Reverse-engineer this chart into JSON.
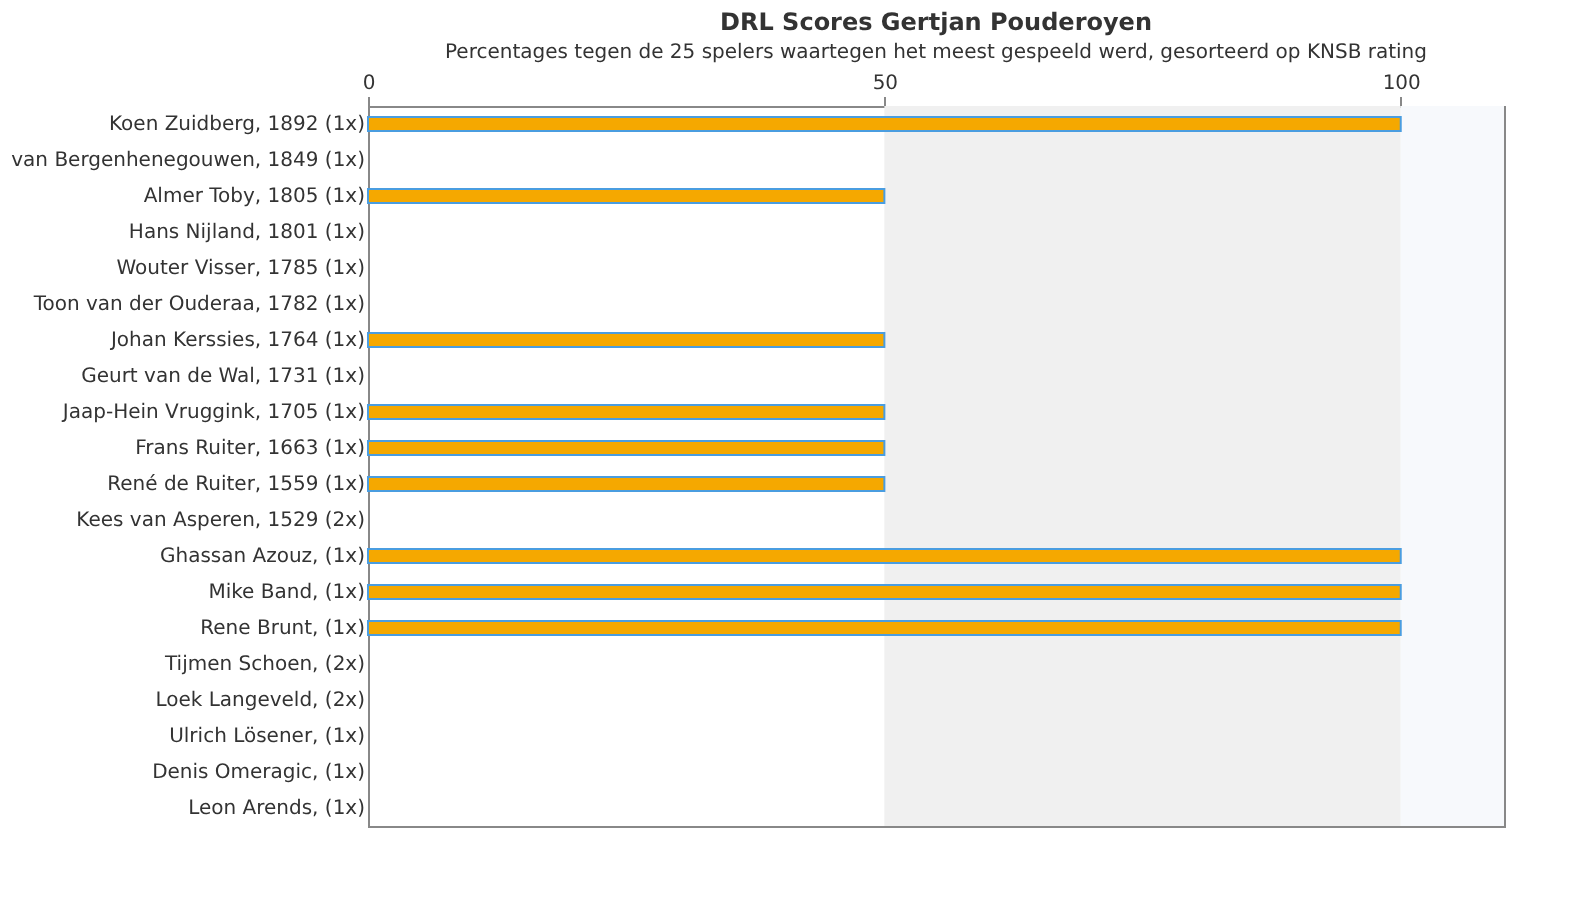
{
  "chart_data": {
    "type": "bar",
    "orientation": "horizontal",
    "title": "DRL Scores Gertjan Pouderoyen",
    "subtitle": "Percentages tegen de 25 spelers waartegen het meest gespeeld werd, gesorteerd op KNSB rating",
    "categories": [
      "Koen Zuidberg, 1892 (1x)",
      "van Bergenhenegouwen, 1849 (1x)",
      "Almer Toby, 1805 (1x)",
      "Hans Nijland, 1801 (1x)",
      "Wouter Visser, 1785 (1x)",
      "Toon van der Ouderaa, 1782 (1x)",
      "Johan Kerssies, 1764 (1x)",
      "Geurt van de Wal, 1731 (1x)",
      "Jaap-Hein Vruggink, 1705 (1x)",
      "Frans Ruiter, 1663 (1x)",
      "René de Ruiter, 1559 (1x)",
      "Kees van Asperen, 1529 (2x)",
      "Ghassan Azouz,  (1x)",
      "Mike Band,  (1x)",
      "Rene Brunt,  (1x)",
      "Tijmen Schoen,  (2x)",
      "Loek Langeveld,  (2x)",
      "Ulrich Lösener,  (1x)",
      "Denis Omeragic,  (1x)",
      "Leon Arends,  (1x)"
    ],
    "series": [
      {
        "color": "#f5a800",
        "values": [
          100,
          null,
          50,
          null,
          null,
          null,
          50,
          null,
          50,
          50,
          50,
          null,
          100,
          100,
          100,
          null,
          null,
          null,
          null,
          null
        ]
      }
    ],
    "xlim": [
      0,
      110
    ],
    "xticks": [
      0,
      50,
      100
    ],
    "grid": false,
    "bands": [
      {
        "axis": "x",
        "from": 50,
        "to": 100,
        "color": "#f0f0f0"
      },
      {
        "axis": "x",
        "from": 100,
        "to": 110,
        "color": "#f7f9fc"
      }
    ]
  }
}
